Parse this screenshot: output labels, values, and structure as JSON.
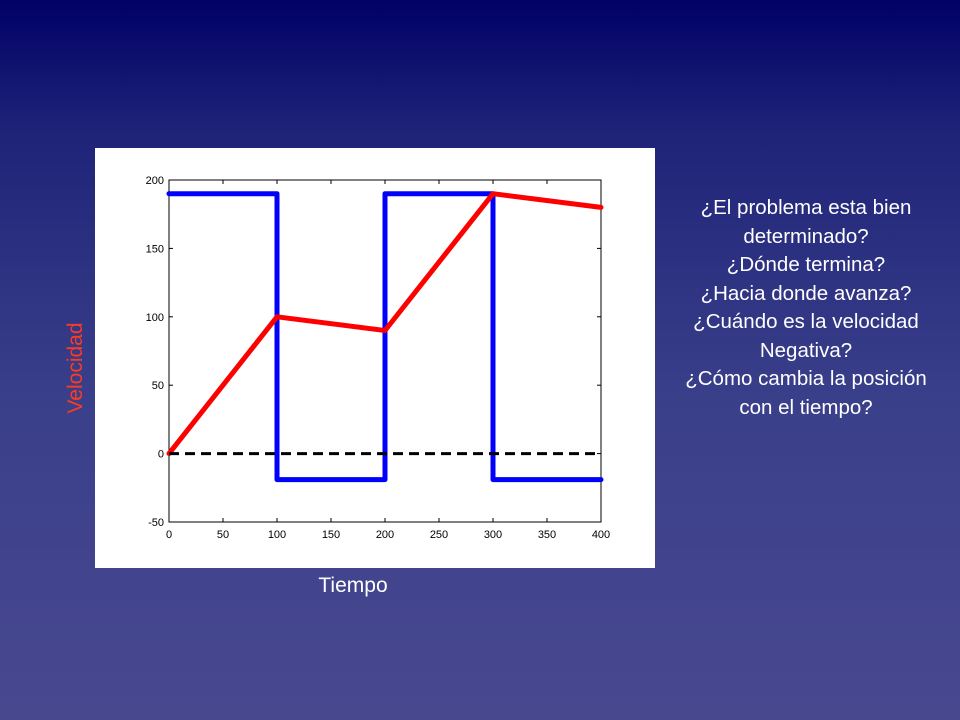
{
  "chart_data": {
    "type": "line",
    "xlabel": "Tiempo",
    "ylabel": "Velocidad",
    "xlim": [
      0,
      400
    ],
    "ylim": [
      -50,
      200
    ],
    "xticks": [
      0,
      50,
      100,
      150,
      200,
      250,
      300,
      350,
      400
    ],
    "yticks": [
      -50,
      0,
      50,
      100,
      150,
      200
    ],
    "grid": false,
    "series": [
      {
        "color": "#0000ff",
        "style": "solid",
        "x": [
          0,
          100,
          100,
          200,
          200,
          300,
          300,
          400
        ],
        "y": [
          190,
          190,
          -19,
          -19,
          190,
          190,
          -19,
          -19
        ]
      },
      {
        "color": "#ff0000",
        "style": "solid",
        "x": [
          0,
          100,
          200,
          300,
          400
        ],
        "y": [
          0,
          100,
          90,
          190,
          180
        ]
      },
      {
        "color": "#000000",
        "style": "dashed",
        "x": [
          0,
          400
        ],
        "y": [
          0,
          0
        ]
      }
    ]
  },
  "questions": [
    "¿El problema esta bien",
    "determinado?",
    "¿Dónde termina?",
    "¿Hacia donde avanza?",
    "¿Cuándo es la velocidad",
    "Negativa?",
    "¿Cómo cambia la posición",
    "con el tiempo?"
  ]
}
